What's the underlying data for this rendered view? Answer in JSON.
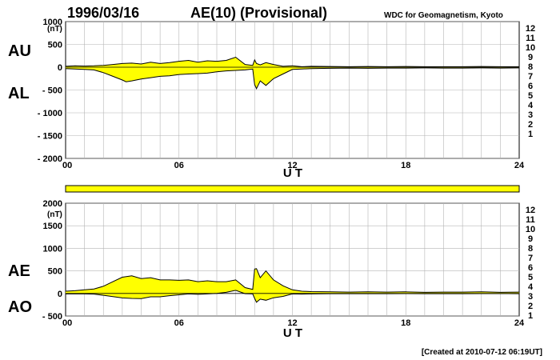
{
  "header": {
    "date": "1996/03/16",
    "title": "AE(10) (Provisional)",
    "source": "WDC for Geomagnetism, Kyoto"
  },
  "footer": {
    "created": "[Created at 2010-07-12 06:19UT]"
  },
  "colors": {
    "fill": "#ffff00",
    "line": "#000000",
    "grid": "#b4b4b4"
  },
  "chart_data": [
    {
      "type": "area",
      "panel": "AU/AL",
      "unit_label": "(nT)",
      "label_upper": "AU",
      "label_lower": "AL",
      "xlabel": "U T",
      "xlim": [
        0,
        24
      ],
      "ylim": [
        -2000,
        1000
      ],
      "xticks": [
        "00",
        "06",
        "12",
        "18",
        "24"
      ],
      "yticks": [
        1000,
        500,
        0,
        -500,
        -1000,
        -1500,
        -2000
      ],
      "ytick_labels": [
        "1000",
        "500",
        "0",
        "- 500",
        "- 1000",
        "- 1500",
        "- 2000"
      ],
      "grid": true,
      "series": [
        {
          "name": "AU",
          "x": [
            0,
            0.5,
            1,
            1.5,
            2,
            2.5,
            3,
            3.5,
            4,
            4.5,
            5,
            5.5,
            6,
            6.5,
            7,
            7.5,
            8,
            8.5,
            9,
            9.5,
            9.9,
            10,
            10.1,
            10.3,
            10.6,
            11,
            11.5,
            12,
            12.5,
            13,
            14,
            15,
            16,
            17,
            18,
            19,
            20,
            21,
            22,
            23,
            24
          ],
          "values": [
            20,
            30,
            25,
            30,
            40,
            60,
            80,
            90,
            70,
            110,
            80,
            100,
            130,
            150,
            110,
            140,
            130,
            150,
            220,
            60,
            40,
            160,
            80,
            50,
            100,
            60,
            20,
            30,
            10,
            20,
            15,
            10,
            15,
            10,
            15,
            10,
            10,
            10,
            15,
            10,
            10
          ]
        },
        {
          "name": "AL",
          "x": [
            0,
            0.5,
            1,
            1.5,
            2,
            2.5,
            3,
            3.2,
            3.5,
            4,
            4.5,
            5,
            5.5,
            6,
            6.5,
            7,
            7.5,
            8,
            8.5,
            9,
            9.5,
            9.9,
            10,
            10.1,
            10.3,
            10.6,
            11,
            11.5,
            12,
            12.5,
            13,
            14,
            15,
            16,
            17,
            18,
            19,
            20,
            21,
            22,
            23,
            24
          ],
          "values": [
            -30,
            -40,
            -50,
            -60,
            -120,
            -200,
            -280,
            -320,
            -300,
            -260,
            -230,
            -200,
            -190,
            -160,
            -150,
            -140,
            -130,
            -100,
            -80,
            -70,
            -60,
            -40,
            -380,
            -470,
            -300,
            -400,
            -250,
            -150,
            -50,
            -40,
            -30,
            -25,
            -20,
            -25,
            -20,
            -20,
            -15,
            -20,
            -20,
            -15,
            -20,
            -15
          ]
        }
      ],
      "side_levels": [
        "12",
        "11",
        "10",
        "9",
        "8",
        "7",
        "6",
        "5",
        "4",
        "3",
        "2",
        "1"
      ]
    },
    {
      "type": "area",
      "panel": "AE/AO",
      "unit_label": "(nT)",
      "label_upper": "AE",
      "label_lower": "AO",
      "xlabel": "U T",
      "xlim": [
        0,
        24
      ],
      "ylim": [
        -500,
        2000
      ],
      "xticks": [
        "00",
        "06",
        "12",
        "18",
        "24"
      ],
      "yticks": [
        2000,
        1500,
        1000,
        500,
        0,
        -500
      ],
      "ytick_labels": [
        "2000",
        "1500",
        "1000",
        "500",
        "0",
        "- 500"
      ],
      "grid": true,
      "series": [
        {
          "name": "AE",
          "x": [
            0,
            0.5,
            1,
            1.5,
            2,
            2.5,
            3,
            3.5,
            4,
            4.5,
            5,
            5.5,
            6,
            6.5,
            7,
            7.5,
            8,
            8.5,
            9,
            9.5,
            9.9,
            10,
            10.1,
            10.3,
            10.6,
            11,
            11.5,
            12,
            12.5,
            13,
            14,
            15,
            16,
            17,
            18,
            19,
            20,
            21,
            22,
            23,
            24
          ],
          "values": [
            50,
            60,
            80,
            100,
            160,
            260,
            360,
            390,
            330,
            350,
            300,
            300,
            290,
            300,
            260,
            280,
            260,
            260,
            300,
            130,
            90,
            540,
            550,
            350,
            500,
            300,
            170,
            80,
            50,
            40,
            35,
            30,
            35,
            30,
            35,
            25,
            30,
            30,
            35,
            25,
            30
          ]
        },
        {
          "name": "AO",
          "x": [
            0,
            0.5,
            1,
            1.5,
            2,
            2.5,
            3,
            3.5,
            4,
            4.5,
            5,
            5.5,
            6,
            6.5,
            7,
            7.5,
            8,
            8.5,
            9,
            9.5,
            9.9,
            10,
            10.1,
            10.3,
            10.6,
            11,
            11.5,
            12,
            12.5,
            13,
            14,
            15,
            16,
            17,
            18,
            19,
            20,
            21,
            22,
            23,
            24
          ],
          "values": [
            -10,
            -10,
            -10,
            -15,
            -40,
            -70,
            -100,
            -110,
            -115,
            -75,
            -75,
            -50,
            -30,
            -10,
            -20,
            -10,
            0,
            25,
            70,
            -5,
            -10,
            -110,
            -195,
            -125,
            -150,
            -95,
            -65,
            -10,
            -15,
            -10,
            -5,
            -5,
            -5,
            -5,
            -3,
            -5,
            -5,
            -5,
            -3,
            -3,
            -5
          ]
        }
      ],
      "side_levels": [
        "12",
        "11",
        "10",
        "9",
        "8",
        "7",
        "6",
        "5",
        "4",
        "3",
        "2",
        "1"
      ]
    }
  ],
  "level_colors": [
    "#ff1493",
    "#e00000",
    "#ff8c00",
    "#ffd700",
    "#adff2f",
    "#00e0e0",
    "#1e90ff",
    "#0000cd",
    "#cc00cc",
    "#333333",
    "#777777",
    "#bbbbbb"
  ]
}
